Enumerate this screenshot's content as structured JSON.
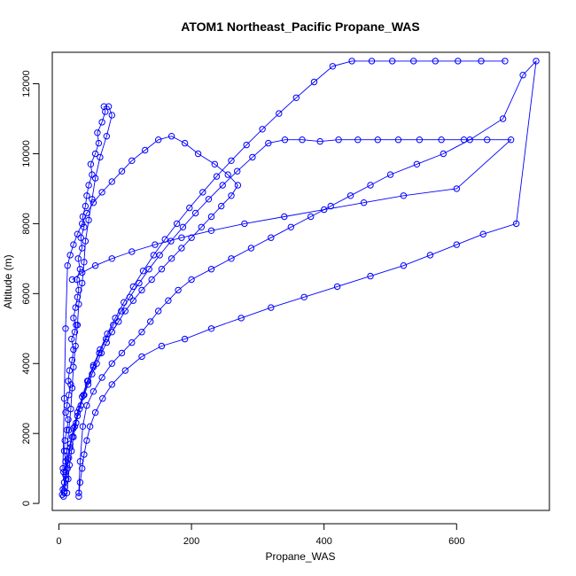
{
  "chart_data": {
    "type": "scatter",
    "title": "ATOM1 Northeast_Pacific Propane_WAS",
    "xlabel": "Propane_WAS",
    "ylabel": "Altitude (m)",
    "xlim": [
      -10,
      740
    ],
    "ylim": [
      -200,
      12900
    ],
    "x_ticks": [
      0,
      200,
      400,
      600
    ],
    "y_ticks": [
      0,
      2000,
      4000,
      6000,
      8000,
      10000,
      12000
    ],
    "x_tick_labels": [
      "0",
      "200",
      "400",
      "600"
    ],
    "y_tick_labels": [
      "0",
      "2000",
      "4000",
      "6000",
      "8000",
      "10000",
      "12000"
    ],
    "grid": false,
    "legend": "none",
    "marker": "open-circle",
    "connected": true,
    "colors": {
      "series": "#0000ff",
      "axis": "#000000",
      "background": "#ffffff"
    },
    "series": [
      {
        "x": [
          5,
          6,
          8,
          7,
          10,
          8,
          9,
          12,
          14,
          10,
          12,
          15,
          18,
          14,
          16,
          20,
          22,
          19,
          24,
          26,
          22,
          25,
          28,
          30,
          27,
          32,
          29,
          35,
          33,
          38,
          36,
          40,
          42,
          45,
          50,
          48,
          55,
          60,
          58,
          65,
          70,
          68,
          75,
          80,
          72,
          62,
          55,
          50,
          45,
          40,
          38,
          35,
          30,
          28,
          25,
          22,
          20,
          18,
          15,
          12,
          10,
          8
        ],
        "y": [
          250,
          400,
          600,
          900,
          1200,
          1500,
          1800,
          2100,
          2400,
          2600,
          2800,
          3100,
          3400,
          3500,
          3800,
          4100,
          4400,
          4700,
          4900,
          5100,
          5300,
          5600,
          5900,
          6100,
          6400,
          6700,
          7000,
          7300,
          7600,
          7900,
          8200,
          8500,
          8800,
          9100,
          9400,
          9700,
          10000,
          10300,
          10600,
          10900,
          11200,
          11350,
          11350,
          11100,
          10500,
          9900,
          9300,
          8700,
          8100,
          7500,
          6900,
          6300,
          5700,
          5100,
          4500,
          3900,
          3300,
          2700,
          2100,
          1500,
          900,
          300
        ]
      },
      {
        "x": [
          7,
          9,
          11,
          13,
          15,
          17,
          20,
          24,
          28,
          33,
          38,
          44,
          50,
          57,
          64,
          72,
          80,
          90,
          100,
          112,
          125,
          140,
          155,
          170,
          185,
          200,
          215,
          230,
          245,
          260,
          270,
          255,
          235,
          210,
          190,
          170,
          150,
          130,
          110,
          95,
          80,
          65,
          52,
          42,
          35,
          28,
          22,
          17,
          13,
          10,
          8,
          6
        ],
        "y": [
          200,
          450,
          700,
          1000,
          1300,
          1600,
          1900,
          2200,
          2500,
          2800,
          3100,
          3400,
          3700,
          4000,
          4300,
          4600,
          4900,
          5200,
          5500,
          5800,
          6100,
          6400,
          6700,
          7000,
          7300,
          7600,
          7900,
          8200,
          8500,
          8800,
          9100,
          9400,
          9700,
          10000,
          10300,
          10500,
          10400,
          10100,
          9800,
          9500,
          9200,
          8900,
          8600,
          8300,
          8000,
          7700,
          7400,
          7100,
          6800,
          5000,
          3000,
          1000
        ]
      },
      {
        "x": [
          30,
          32,
          35,
          38,
          42,
          47,
          55,
          66,
          80,
          100,
          125,
          155,
          190,
          230,
          275,
          320,
          370,
          420,
          470,
          520,
          560,
          600,
          640,
          690,
          720,
          700,
          670,
          620,
          580,
          540,
          500,
          470,
          440,
          410,
          380,
          350,
          320,
          290,
          260,
          230,
          200,
          180,
          165,
          150,
          138,
          125,
          110,
          95,
          80,
          65,
          52,
          42,
          36,
          32,
          30
        ],
        "y": [
          200,
          600,
          1000,
          1400,
          1800,
          2200,
          2600,
          3000,
          3400,
          3800,
          4200,
          4500,
          4700,
          5000,
          5300,
          5600,
          5900,
          6200,
          6500,
          6800,
          7100,
          7400,
          7700,
          8000,
          12650,
          12250,
          11000,
          10400,
          10000,
          9700,
          9400,
          9100,
          8800,
          8500,
          8200,
          7900,
          7600,
          7300,
          7000,
          6700,
          6400,
          6100,
          5800,
          5500,
          5200,
          4900,
          4600,
          4300,
          4000,
          3600,
          3200,
          2800,
          2200,
          1200,
          300
        ]
      },
      {
        "x": [
          12,
          14,
          16,
          19,
          22,
          26,
          31,
          37,
          44,
          52,
          61,
          71,
          82,
          94,
          107,
          121,
          136,
          152,
          169,
          187,
          206,
          226,
          247,
          269,
          292,
          316,
          341,
          367,
          394,
          422,
          451,
          481,
          512,
          544,
          577,
          611,
          646,
          682,
          600,
          520,
          460,
          400,
          340,
          280,
          230,
          185,
          145,
          110,
          80,
          55,
          35,
          20
        ],
        "y": [
          300,
          700,
          1100,
          1500,
          1900,
          2300,
          2700,
          3100,
          3500,
          3900,
          4300,
          4700,
          5100,
          5500,
          5900,
          6300,
          6700,
          7100,
          7500,
          7900,
          8300,
          8700,
          9100,
          9500,
          9900,
          10300,
          10400,
          10400,
          10350,
          10400,
          10400,
          10400,
          10400,
          10400,
          10400,
          10400,
          10400,
          10400,
          9000,
          8800,
          8600,
          8400,
          8200,
          8000,
          7800,
          7600,
          7400,
          7200,
          7000,
          6800,
          6600,
          6400
        ]
      },
      {
        "x": [
          8,
          10,
          13,
          17,
          22,
          28,
          35,
          43,
          52,
          62,
          73,
          85,
          98,
          112,
          127,
          143,
          160,
          178,
          197,
          217,
          238,
          260,
          283,
          307,
          332,
          358,
          385,
          413,
          442,
          472,
          503,
          535,
          568,
          602,
          637,
          673
        ],
        "y": [
          350,
          800,
          1250,
          1700,
          2150,
          2600,
          3050,
          3500,
          3950,
          4400,
          4850,
          5300,
          5750,
          6200,
          6650,
          7100,
          7550,
          8000,
          8450,
          8900,
          9350,
          9800,
          10250,
          10700,
          11150,
          11600,
          12050,
          12500,
          12650,
          12650,
          12650,
          12650,
          12650,
          12650,
          12650,
          12650
        ]
      }
    ]
  }
}
